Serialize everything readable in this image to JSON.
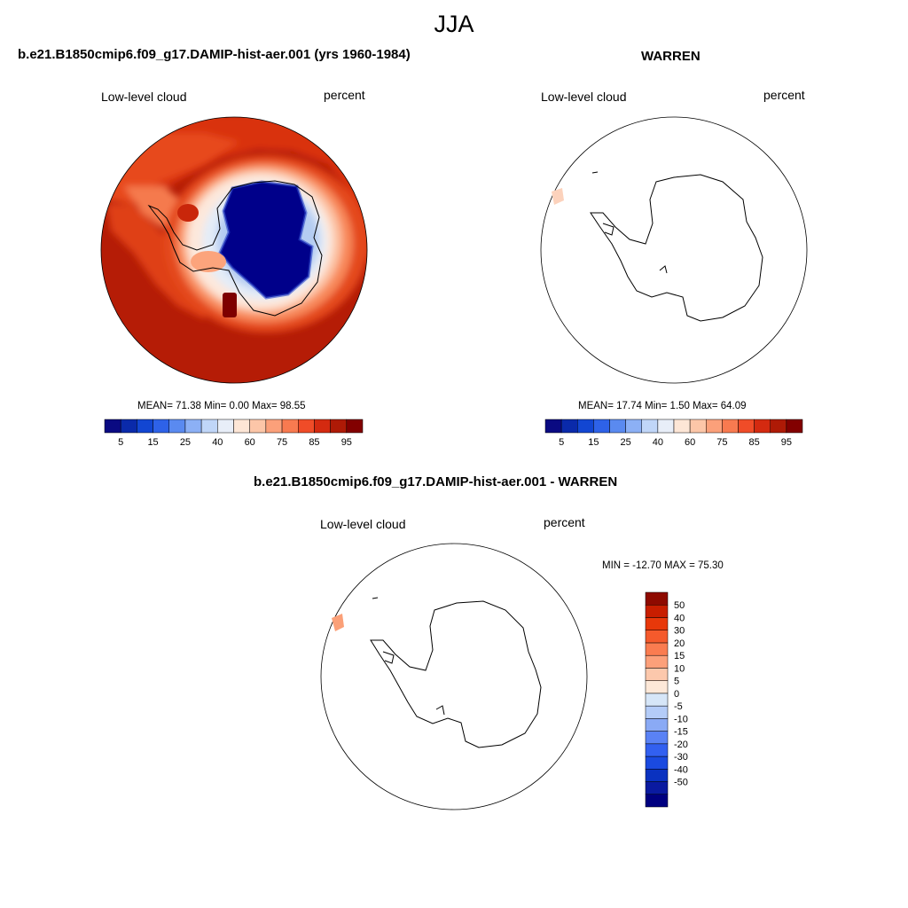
{
  "figure": {
    "title": "JJA"
  },
  "panels": [
    {
      "title": "b.e21.B1850cmip6.f09_g17.DAMIP-hist-aer.001 (yrs 1960-1984)",
      "left_label": "Low-level cloud",
      "right_label": "percent",
      "stats": {
        "mean": "71.38",
        "min": "0.00",
        "max": "98.55"
      },
      "stats_text": "MEAN=  71.38  Min=    0.00  Max=  98.55"
    },
    {
      "title": "WARREN",
      "left_label": "Low-level cloud",
      "right_label": "percent",
      "stats": {
        "mean": "17.74",
        "min": "1.50",
        "max": "64.09"
      },
      "stats_text": "MEAN=  17.74  Min=    1.50  Max=  64.09"
    },
    {
      "title": "b.e21.B1850cmip6.f09_g17.DAMIP-hist-aer.001 - WARREN",
      "left_label": "Low-level cloud",
      "right_label": "percent",
      "stats": {
        "min": "-12.70",
        "max": "75.30"
      },
      "stats_text": "MIN = -12.70 MAX =  75.30"
    }
  ],
  "colorbars": {
    "absolute": {
      "colors": [
        "#0a0a82",
        "#0a2aaa",
        "#1246d2",
        "#2e62e8",
        "#5a8af0",
        "#8cb0f5",
        "#c0d6f8",
        "#e8eef8",
        "#fde6d6",
        "#fcc6a8",
        "#fba07a",
        "#f87a50",
        "#f04c28",
        "#d42a10",
        "#ae1a06",
        "#820000"
      ],
      "tick_labels": [
        "5",
        "15",
        "25",
        "40",
        "60",
        "75",
        "85",
        "95"
      ]
    },
    "difference": {
      "colors": [
        "#000080",
        "#0a1aa0",
        "#0a32c0",
        "#1a4ae0",
        "#3260f0",
        "#5a82f5",
        "#8aaaf5",
        "#b4ccf8",
        "#d6e6f8",
        "#fde8d8",
        "#fcc8ac",
        "#fca07a",
        "#fa7c50",
        "#f55a2c",
        "#e8380a",
        "#c81e00",
        "#8e0a00"
      ],
      "tick_labels": [
        "50",
        "40",
        "30",
        "20",
        "15",
        "10",
        "5",
        "0",
        "-5",
        "-10",
        "-15",
        "-20",
        "-30",
        "-40",
        "-50"
      ]
    }
  },
  "chart_data": {
    "type": "map",
    "title": "JJA",
    "variable": "Low-level cloud",
    "units": "percent",
    "projection": "south polar stereographic",
    "panels": [
      {
        "name": "b.e21.B1850cmip6.f09_g17.DAMIP-hist-aer.001 (yrs 1960-1984)",
        "mean": 71.38,
        "min": 0.0,
        "max": 98.55,
        "levels": [
          5,
          10,
          15,
          20,
          25,
          30,
          40,
          50,
          60,
          70,
          75,
          80,
          85,
          90,
          95
        ]
      },
      {
        "name": "WARREN",
        "mean": 17.74,
        "min": 1.5,
        "max": 64.09,
        "levels": [
          5,
          10,
          15,
          20,
          25,
          30,
          40,
          50,
          60,
          70,
          75,
          80,
          85,
          90,
          95
        ]
      },
      {
        "name": "b.e21.B1850cmip6.f09_g17.DAMIP-hist-aer.001 - WARREN",
        "min": -12.7,
        "max": 75.3,
        "levels": [
          -50,
          -40,
          -30,
          -20,
          -15,
          -10,
          -5,
          0,
          5,
          10,
          15,
          20,
          30,
          40,
          50
        ]
      }
    ]
  }
}
